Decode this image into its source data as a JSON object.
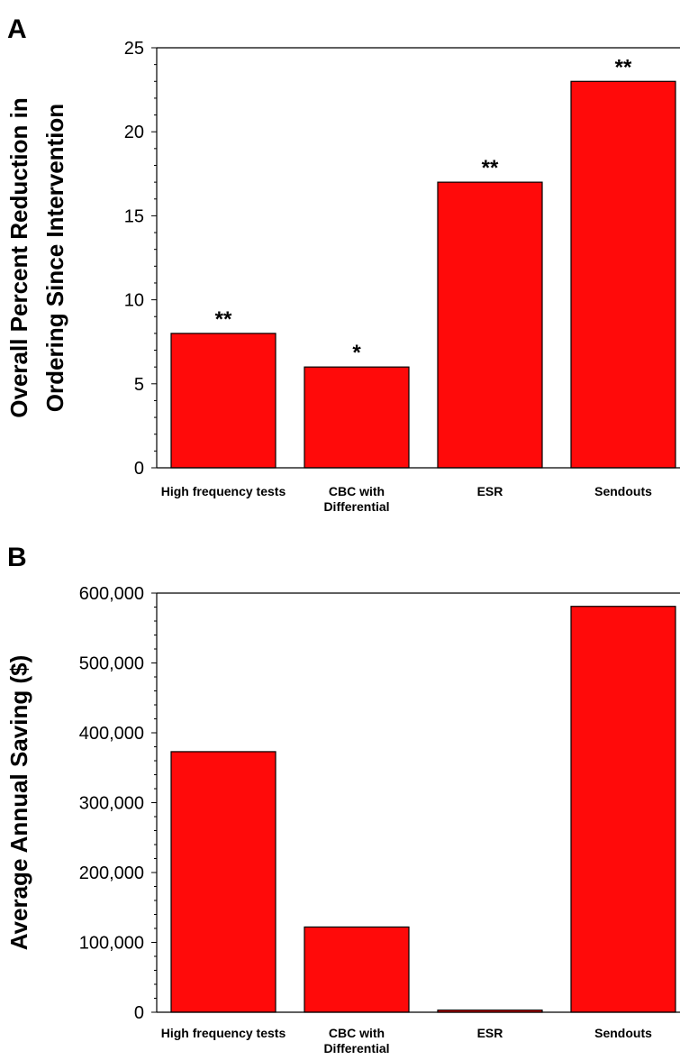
{
  "chart_data": [
    {
      "panel": "A",
      "type": "bar",
      "ylabel": [
        "Overall Percent Reduction in",
        "Ordering Since Intervention"
      ],
      "categories": [
        [
          "High frequency tests"
        ],
        [
          "CBC with",
          "Differential"
        ],
        [
          "ESR"
        ],
        [
          "Sendouts"
        ]
      ],
      "values": [
        8,
        6,
        17,
        23
      ],
      "annotations": [
        "**",
        "*",
        "**",
        "**"
      ],
      "ylim": [
        0,
        25
      ],
      "yticks": [
        0,
        5,
        10,
        15,
        20,
        25
      ],
      "ytick_labels": [
        "0",
        "5",
        "10",
        "15",
        "20",
        "25"
      ],
      "minor_ticks_per_interval": 5,
      "bar_color": "#ff0a0a",
      "grid": false
    },
    {
      "panel": "B",
      "type": "bar",
      "ylabel": [
        "Average Annual Saving ($)"
      ],
      "categories": [
        [
          "High frequency tests"
        ],
        [
          "CBC with",
          "Differential"
        ],
        [
          "ESR"
        ],
        [
          "Sendouts"
        ]
      ],
      "values": [
        373000,
        122000,
        3000,
        581000
      ],
      "ylim": [
        0,
        600000
      ],
      "yticks": [
        0,
        100000,
        200000,
        300000,
        400000,
        500000,
        600000
      ],
      "ytick_labels": [
        "0",
        "100,000",
        "200,000",
        "300,000",
        "400,000",
        "500,000",
        "600,000"
      ],
      "minor_ticks_per_interval": 5,
      "bar_color": "#ff0a0a",
      "grid": false
    }
  ]
}
